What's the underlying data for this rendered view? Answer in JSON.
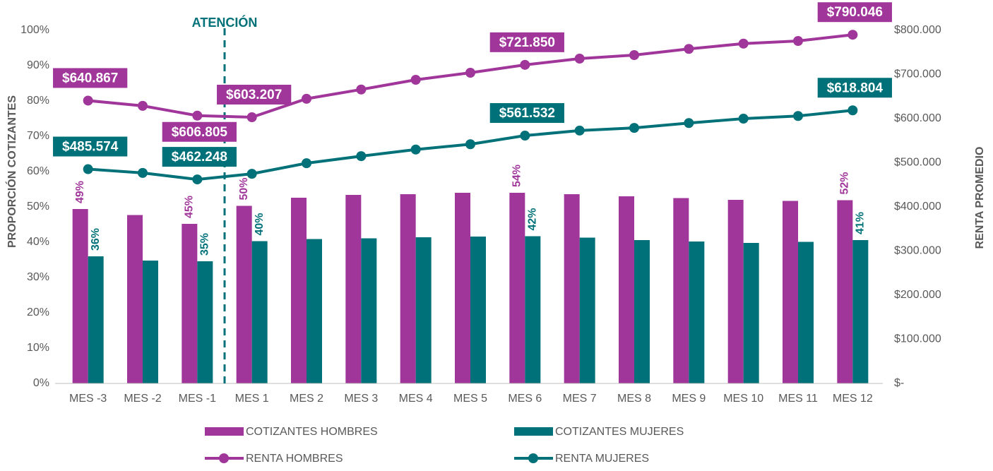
{
  "chart_data": {
    "type": "bar",
    "annotation": "ATENCIÓN",
    "y_label": "PROPORCIÓN COTIZANTES",
    "y2_label": "RENTA PROMEDIO",
    "categories": [
      "MES -3",
      "MES -2",
      "MES -1",
      "MES 1",
      "MES 2",
      "MES 3",
      "MES 4",
      "MES 5",
      "MES 6",
      "MES 7",
      "MES 8",
      "MES 9",
      "MES 10",
      "MES 11",
      "MES 12"
    ],
    "ylim": [
      0,
      100
    ],
    "yticks": [
      {
        "value": 0,
        "label": "0%"
      },
      {
        "value": 10,
        "label": "10%"
      },
      {
        "value": 20,
        "label": "20%"
      },
      {
        "value": 30,
        "label": "30%"
      },
      {
        "value": 40,
        "label": "40%"
      },
      {
        "value": 50,
        "label": "50%"
      },
      {
        "value": 60,
        "label": "60%"
      },
      {
        "value": 70,
        "label": "70%"
      },
      {
        "value": 80,
        "label": "80%"
      },
      {
        "value": 90,
        "label": "90%"
      },
      {
        "value": 100,
        "label": "100%"
      }
    ],
    "y2lim": [
      0,
      800000
    ],
    "y2ticks": [
      {
        "value": 0,
        "label": "$-"
      },
      {
        "value": 100000,
        "label": "$100.000"
      },
      {
        "value": 200000,
        "label": "$200.000"
      },
      {
        "value": 300000,
        "label": "$300.000"
      },
      {
        "value": 400000,
        "label": "$400.000"
      },
      {
        "value": 500000,
        "label": "$500.000"
      },
      {
        "value": 600000,
        "label": "$600.000"
      },
      {
        "value": 700000,
        "label": "$700.000"
      },
      {
        "value": 800000,
        "label": "$800.000"
      }
    ],
    "series": [
      {
        "name": "COTIZANTES HOMBRES",
        "type": "bar",
        "color": "#a0369a",
        "values": [
          49.4,
          47.7,
          45.2,
          50.3,
          52.6,
          53.4,
          53.6,
          54.0,
          54.0,
          53.6,
          53.0,
          52.5,
          52.0,
          51.7,
          51.9
        ],
        "value_labels": [
          "49%",
          null,
          "45%",
          "50%",
          null,
          null,
          null,
          null,
          "54%",
          null,
          null,
          null,
          null,
          null,
          "52%"
        ]
      },
      {
        "name": "COTIZANTES MUJERES",
        "type": "bar",
        "color": "#007178",
        "values": [
          36.0,
          34.8,
          34.6,
          40.3,
          40.9,
          41.1,
          41.4,
          41.6,
          41.7,
          41.3,
          40.6,
          40.2,
          39.8,
          40.1,
          40.6
        ],
        "value_labels": [
          "36%",
          null,
          "35%",
          "40%",
          null,
          null,
          null,
          null,
          "42%",
          null,
          null,
          null,
          null,
          null,
          "41%"
        ]
      },
      {
        "name": "RENTA HOMBRES",
        "type": "line",
        "axis": "y2",
        "color": "#a0369a",
        "values": [
          640867,
          629000,
          606805,
          603207,
          645000,
          666000,
          688000,
          704000,
          721850,
          736000,
          744000,
          758000,
          770000,
          776000,
          790046
        ],
        "value_labels": [
          "$640.867",
          null,
          "$606.805",
          "$603.207",
          null,
          null,
          null,
          null,
          "$721.850",
          null,
          null,
          null,
          null,
          null,
          "$790.046"
        ]
      },
      {
        "name": "RENTA MUJERES",
        "type": "line",
        "axis": "y2",
        "color": "#007178",
        "values": [
          485574,
          477000,
          462248,
          475000,
          499000,
          515000,
          530000,
          542000,
          561532,
          573000,
          579000,
          590000,
          600000,
          606000,
          618804
        ],
        "value_labels": [
          "$485.574",
          null,
          "$462.248",
          null,
          null,
          null,
          null,
          null,
          "$561.532",
          null,
          null,
          null,
          null,
          null,
          "$618.804"
        ]
      }
    ]
  }
}
